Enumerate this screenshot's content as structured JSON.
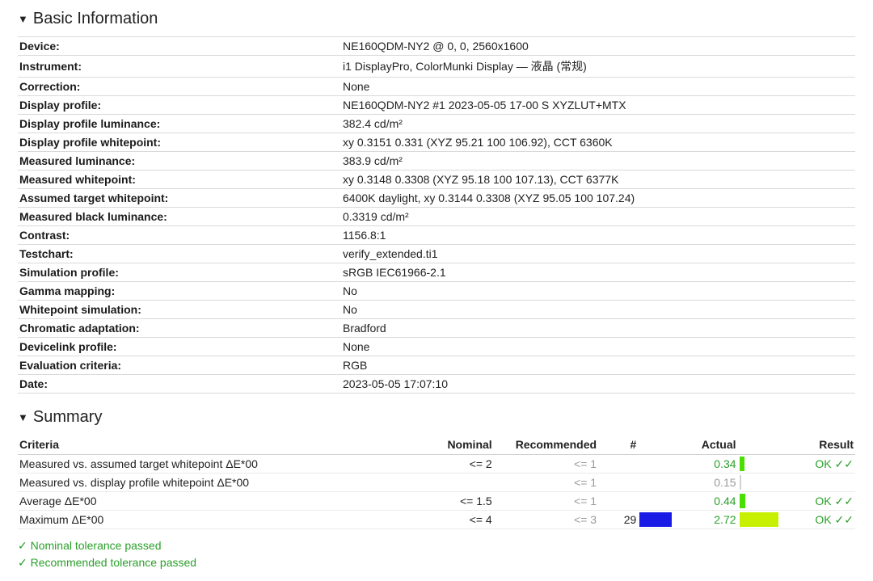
{
  "colors": {
    "ok": "#2aa02a",
    "muted": "#9a9a9a",
    "border": "#d9d9d9"
  },
  "basic_info": {
    "title": "Basic Information",
    "rows": [
      {
        "label": "Device:",
        "value": "NE160QDM-NY2 @ 0, 0, 2560x1600"
      },
      {
        "label": "Instrument:",
        "value": "i1 DisplayPro, ColorMunki Display — 液晶 (常规)"
      },
      {
        "label": "Correction:",
        "value": "None"
      },
      {
        "label": "Display profile:",
        "value": "NE160QDM-NY2 #1 2023-05-05 17-00 S XYZLUT+MTX"
      },
      {
        "label": "Display profile luminance:",
        "value": "382.4 cd/m²"
      },
      {
        "label": "Display profile whitepoint:",
        "value": "xy 0.3151 0.331 (XYZ 95.21 100 106.92), CCT 6360K"
      },
      {
        "label": "Measured luminance:",
        "value": "383.9 cd/m²"
      },
      {
        "label": "Measured whitepoint:",
        "value": "xy 0.3148 0.3308 (XYZ 95.18 100 107.13), CCT 6377K"
      },
      {
        "label": "Assumed target whitepoint:",
        "value": "6400K daylight, xy 0.3144 0.3308 (XYZ 95.05 100 107.24)"
      },
      {
        "label": "Measured black luminance:",
        "value": "0.3319 cd/m²"
      },
      {
        "label": "Contrast:",
        "value": "1156.8:1"
      },
      {
        "label": "Testchart:",
        "value": "verify_extended.ti1"
      },
      {
        "label": "Simulation profile:",
        "value": "sRGB IEC61966-2.1"
      },
      {
        "label": "Gamma mapping:",
        "value": "No"
      },
      {
        "label": "Whitepoint simulation:",
        "value": "No"
      },
      {
        "label": "Chromatic adaptation:",
        "value": "Bradford"
      },
      {
        "label": "Devicelink profile:",
        "value": "None"
      },
      {
        "label": "Evaluation criteria:",
        "value": "RGB"
      },
      {
        "label": "Date:",
        "value": "2023-05-05 17:07:10"
      }
    ]
  },
  "summary": {
    "title": "Summary",
    "headers": {
      "criteria": "Criteria",
      "nominal": "Nominal",
      "recommended": "Recommended",
      "hash": "#",
      "actual": "Actual",
      "result": "Result"
    },
    "bar_max": 4,
    "rows": [
      {
        "criteria": "Measured vs. assumed target whitepoint ΔE*00",
        "nominal": "<= 2",
        "recommended": "<= 1",
        "hash": "",
        "swatch": null,
        "actual": "0.34",
        "actual_color": "#2aa02a",
        "bar_value": 0.34,
        "bar_color": "#49e000",
        "result": "OK ✓✓",
        "result_color": "#2aa02a"
      },
      {
        "criteria": "Measured vs. display profile whitepoint ΔE*00",
        "nominal": "",
        "recommended": "<= 1",
        "hash": "",
        "swatch": null,
        "actual": "0.15",
        "actual_color": "#9a9a9a",
        "bar_value": 0.15,
        "bar_color": "#d2d2d2",
        "result": "",
        "result_color": ""
      },
      {
        "criteria": "Average ΔE*00",
        "nominal": "<= 1.5",
        "recommended": "<= 1",
        "hash": "",
        "swatch": null,
        "actual": "0.44",
        "actual_color": "#2aa02a",
        "bar_value": 0.44,
        "bar_color": "#49e000",
        "result": "OK ✓✓",
        "result_color": "#2aa02a"
      },
      {
        "criteria": "Maximum ΔE*00",
        "nominal": "<= 4",
        "recommended": "<= 3",
        "hash": "29",
        "swatch": "#1a1ae6",
        "actual": "2.72",
        "actual_color": "#2aa02a",
        "bar_value": 2.72,
        "bar_color": "#c6f000",
        "result": "OK ✓✓",
        "result_color": "#2aa02a"
      }
    ],
    "legend": {
      "nominal": "✓ Nominal tolerance passed",
      "recommended": "✓ Recommended tolerance passed"
    }
  }
}
